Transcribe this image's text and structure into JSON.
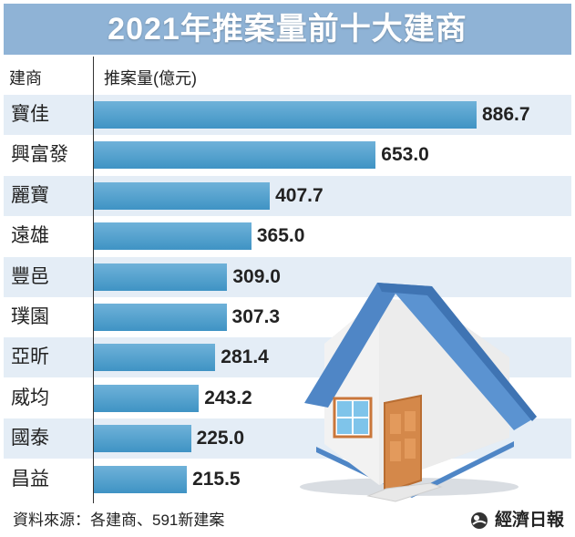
{
  "title": "2021年推案量前十大建商",
  "headers": {
    "left": "建商",
    "right": "推案量(億元)"
  },
  "colors": {
    "title_bg": "#8fb3d6",
    "bar": "#4a9ccd",
    "row_alt": "#e4edf6",
    "roof": "#4f86c6",
    "door": "#d4884a"
  },
  "chart_data": {
    "type": "bar",
    "orientation": "horizontal",
    "title": "2021年推案量前十大建商",
    "xlabel": "推案量(億元)",
    "ylabel": "建商",
    "categories": [
      "寶佳",
      "興富發",
      "麗寶",
      "遠雄",
      "豐邑",
      "璞園",
      "亞昕",
      "威均",
      "國泰",
      "昌益"
    ],
    "values": [
      886.7,
      653.0,
      407.7,
      365.0,
      309.0,
      307.3,
      281.4,
      243.2,
      225.0,
      215.5
    ],
    "value_labels": [
      "886.7",
      "653.0",
      "407.7",
      "365.0",
      "309.0",
      "307.3",
      "281.4",
      "243.2",
      "225.0",
      "215.5"
    ],
    "xlim": [
      0,
      1000
    ],
    "grid": false
  },
  "footer": {
    "source": "資料來源：各建商、591新建案",
    "publisher": "經濟日報"
  },
  "icons": {
    "house": "house-illustration",
    "logo": "publisher-logo-icon"
  }
}
